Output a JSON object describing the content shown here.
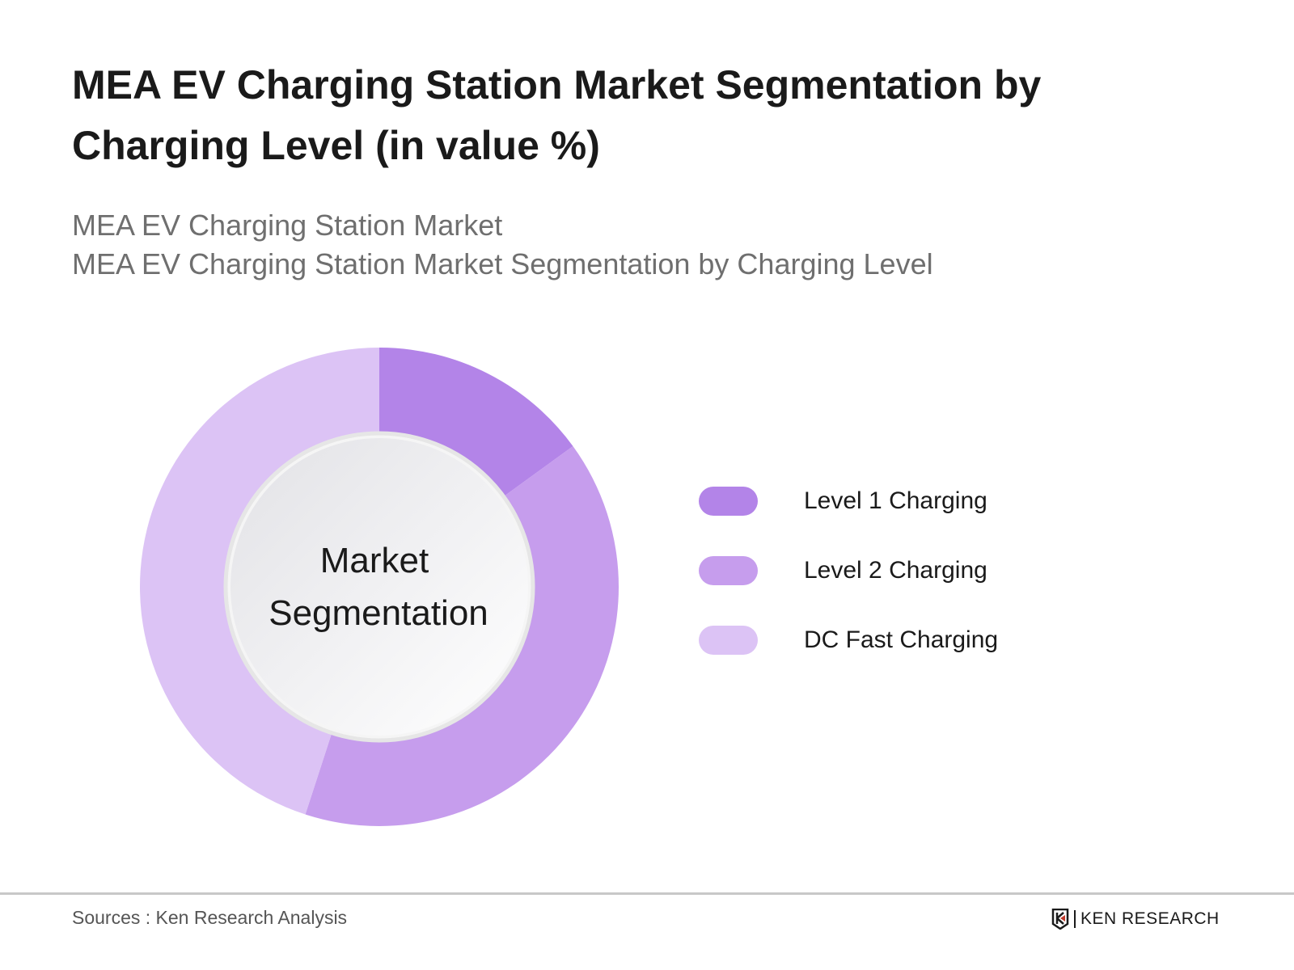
{
  "header": {
    "title": "MEA EV Charging Station Market Segmentation by Charging Level (in value %)",
    "subtitle_1": "MEA EV Charging Station Market",
    "subtitle_2": "MEA EV Charging Station Market Segmentation by Charging Level"
  },
  "chart_data": {
    "type": "pie",
    "variant": "donut",
    "center_label": [
      "Market",
      "Segmentation"
    ],
    "categories": [
      "Level 1 Charging",
      "Level 2 Charging",
      "DC Fast Charging"
    ],
    "values": [
      15,
      40,
      45
    ],
    "colors": [
      "#b384e8",
      "#c69ded",
      "#dcc3f5"
    ],
    "legend_position": "right"
  },
  "footer": {
    "sources": "Sources : Ken Research Analysis",
    "logo_text": "KEN RESEARCH"
  }
}
